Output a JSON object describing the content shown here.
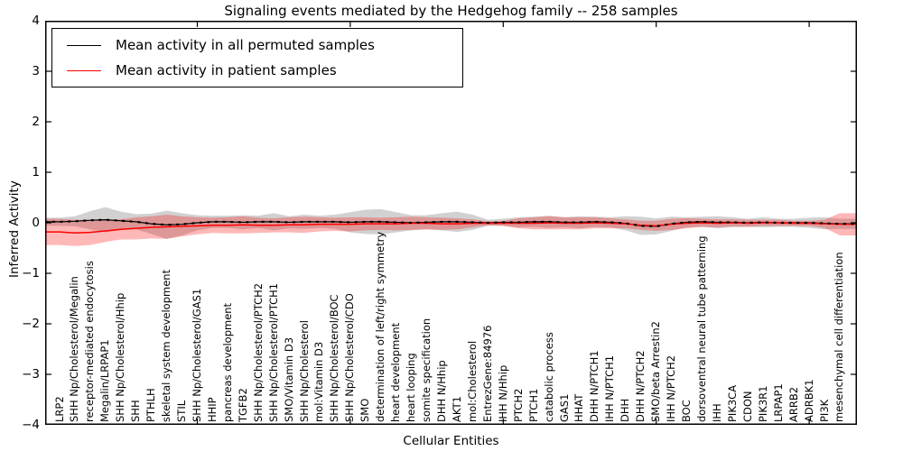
{
  "title": "Signaling events mediated by the Hedgehog family -- 258 samples",
  "chart_data": {
    "type": "line",
    "title": "Signaling events mediated by the Hedgehog family -- 258 samples",
    "xlabel": "Cellular Entities",
    "ylabel": "Inferred Activity",
    "ylim": [
      -4,
      4
    ],
    "yticks": [
      4,
      3,
      2,
      1,
      0,
      -1,
      -2,
      -3,
      -4
    ],
    "xtick_major_every": 10,
    "grid": false,
    "legend_position": "upper left",
    "categories": [
      "LRP2",
      "SHH Np/Cholesterol/Megalin",
      "receptor-mediated endocytosis",
      "Megalin/LRPAP1",
      "SHH Np/Cholesterol/Hhip",
      "SHH",
      "PTHLH",
      "skeletal system development",
      "STIL",
      "SHH Np/Cholesterol/GAS1",
      "HHIP",
      "pancreas development",
      "TGFB2",
      "SHH Np/Cholesterol/PTCH2",
      "SHH Np/Cholesterol/PTCH1",
      "SMO/Vitamin D3",
      "SHH Np/Cholesterol",
      "mol:Vitamin D3",
      "SHH Np/Cholesterol/BOC",
      "SHH Np/Cholesterol/CDO",
      "SMO",
      "determination of left/right symmetry",
      "heart development",
      "heart looping",
      "somite specification",
      "DHH N/Hhip",
      "AKT1",
      "mol:Cholesterol",
      "EntrezGene:84976",
      "IHH N/Hhip",
      "PTCH2",
      "PTCH1",
      "catabolic process",
      "GAS1",
      "HHAT",
      "DHH N/PTCH1",
      "IHH N/PTCH1",
      "DHH",
      "DHH N/PTCH2",
      "SMO/beta Arrestin2",
      "IHH N/PTCH2",
      "BOC",
      "dorsoventral neural tube patterning",
      "IHH",
      "PIK3CA",
      "CDON",
      "PIK3R1",
      "LRPAP1",
      "ARRB2",
      "ADRBK1",
      "PI3K",
      "mesenchymal cell differentiation"
    ],
    "series": [
      {
        "name": "Mean activity in all permuted samples",
        "color": "#000000",
        "band_alpha": 0.18,
        "values": [
          0.02,
          0.03,
          0.05,
          0.06,
          0.04,
          0.02,
          -0.02,
          -0.04,
          -0.03,
          0.0,
          0.02,
          0.02,
          0.01,
          0.02,
          0.02,
          0.01,
          0.02,
          0.02,
          0.02,
          0.01,
          0.02,
          0.02,
          0.01,
          0.0,
          0.01,
          0.02,
          0.02,
          0.01,
          0.0,
          0.01,
          0.01,
          0.02,
          0.02,
          0.01,
          0.01,
          0.02,
          0.01,
          -0.01,
          -0.06,
          -0.07,
          -0.02,
          0.01,
          0.02,
          0.01,
          0.01,
          0.0,
          0.01,
          0.0,
          0.0,
          0.0,
          -0.01,
          -0.02
        ],
        "std": [
          0.08,
          0.1,
          0.18,
          0.25,
          0.18,
          0.15,
          0.2,
          0.28,
          0.22,
          0.15,
          0.12,
          0.12,
          0.14,
          0.12,
          0.17,
          0.12,
          0.14,
          0.12,
          0.14,
          0.2,
          0.24,
          0.25,
          0.2,
          0.15,
          0.14,
          0.17,
          0.2,
          0.15,
          0.06,
          0.07,
          0.1,
          0.1,
          0.12,
          0.1,
          0.12,
          0.1,
          0.1,
          0.14,
          0.18,
          0.16,
          0.14,
          0.1,
          0.1,
          0.12,
          0.1,
          0.08,
          0.1,
          0.08,
          0.08,
          0.1,
          0.12,
          0.1
        ]
      },
      {
        "name": "Mean activity in patient samples",
        "color": "#ff0000",
        "band_alpha": 0.28,
        "values": [
          -0.18,
          -0.2,
          -0.19,
          -0.16,
          -0.13,
          -0.11,
          -0.09,
          -0.08,
          -0.07,
          -0.06,
          -0.05,
          -0.05,
          -0.04,
          -0.05,
          -0.05,
          -0.04,
          -0.04,
          -0.03,
          -0.03,
          -0.03,
          -0.02,
          -0.02,
          -0.02,
          -0.01,
          -0.01,
          -0.02,
          -0.02,
          -0.01,
          -0.01,
          -0.01,
          -0.01,
          -0.01,
          0.0,
          -0.01,
          -0.01,
          0.0,
          -0.01,
          -0.02,
          -0.05,
          -0.06,
          -0.03,
          -0.01,
          0.0,
          -0.01,
          0.0,
          -0.01,
          0.0,
          0.0,
          -0.01,
          -0.01,
          -0.02,
          -0.03
        ],
        "std": [
          0.26,
          0.26,
          0.25,
          0.22,
          0.2,
          0.22,
          0.22,
          0.24,
          0.2,
          0.17,
          0.15,
          0.16,
          0.17,
          0.15,
          0.14,
          0.15,
          0.16,
          0.14,
          0.13,
          0.14,
          0.13,
          0.12,
          0.13,
          0.13,
          0.12,
          0.12,
          0.11,
          0.08,
          0.04,
          0.05,
          0.1,
          0.12,
          0.13,
          0.12,
          0.12,
          0.11,
          0.1,
          0.09,
          0.09,
          0.1,
          0.11,
          0.1,
          0.08,
          0.08,
          0.07,
          0.07,
          0.06,
          0.06,
          0.05,
          0.05,
          0.08,
          0.22
        ]
      }
    ]
  }
}
